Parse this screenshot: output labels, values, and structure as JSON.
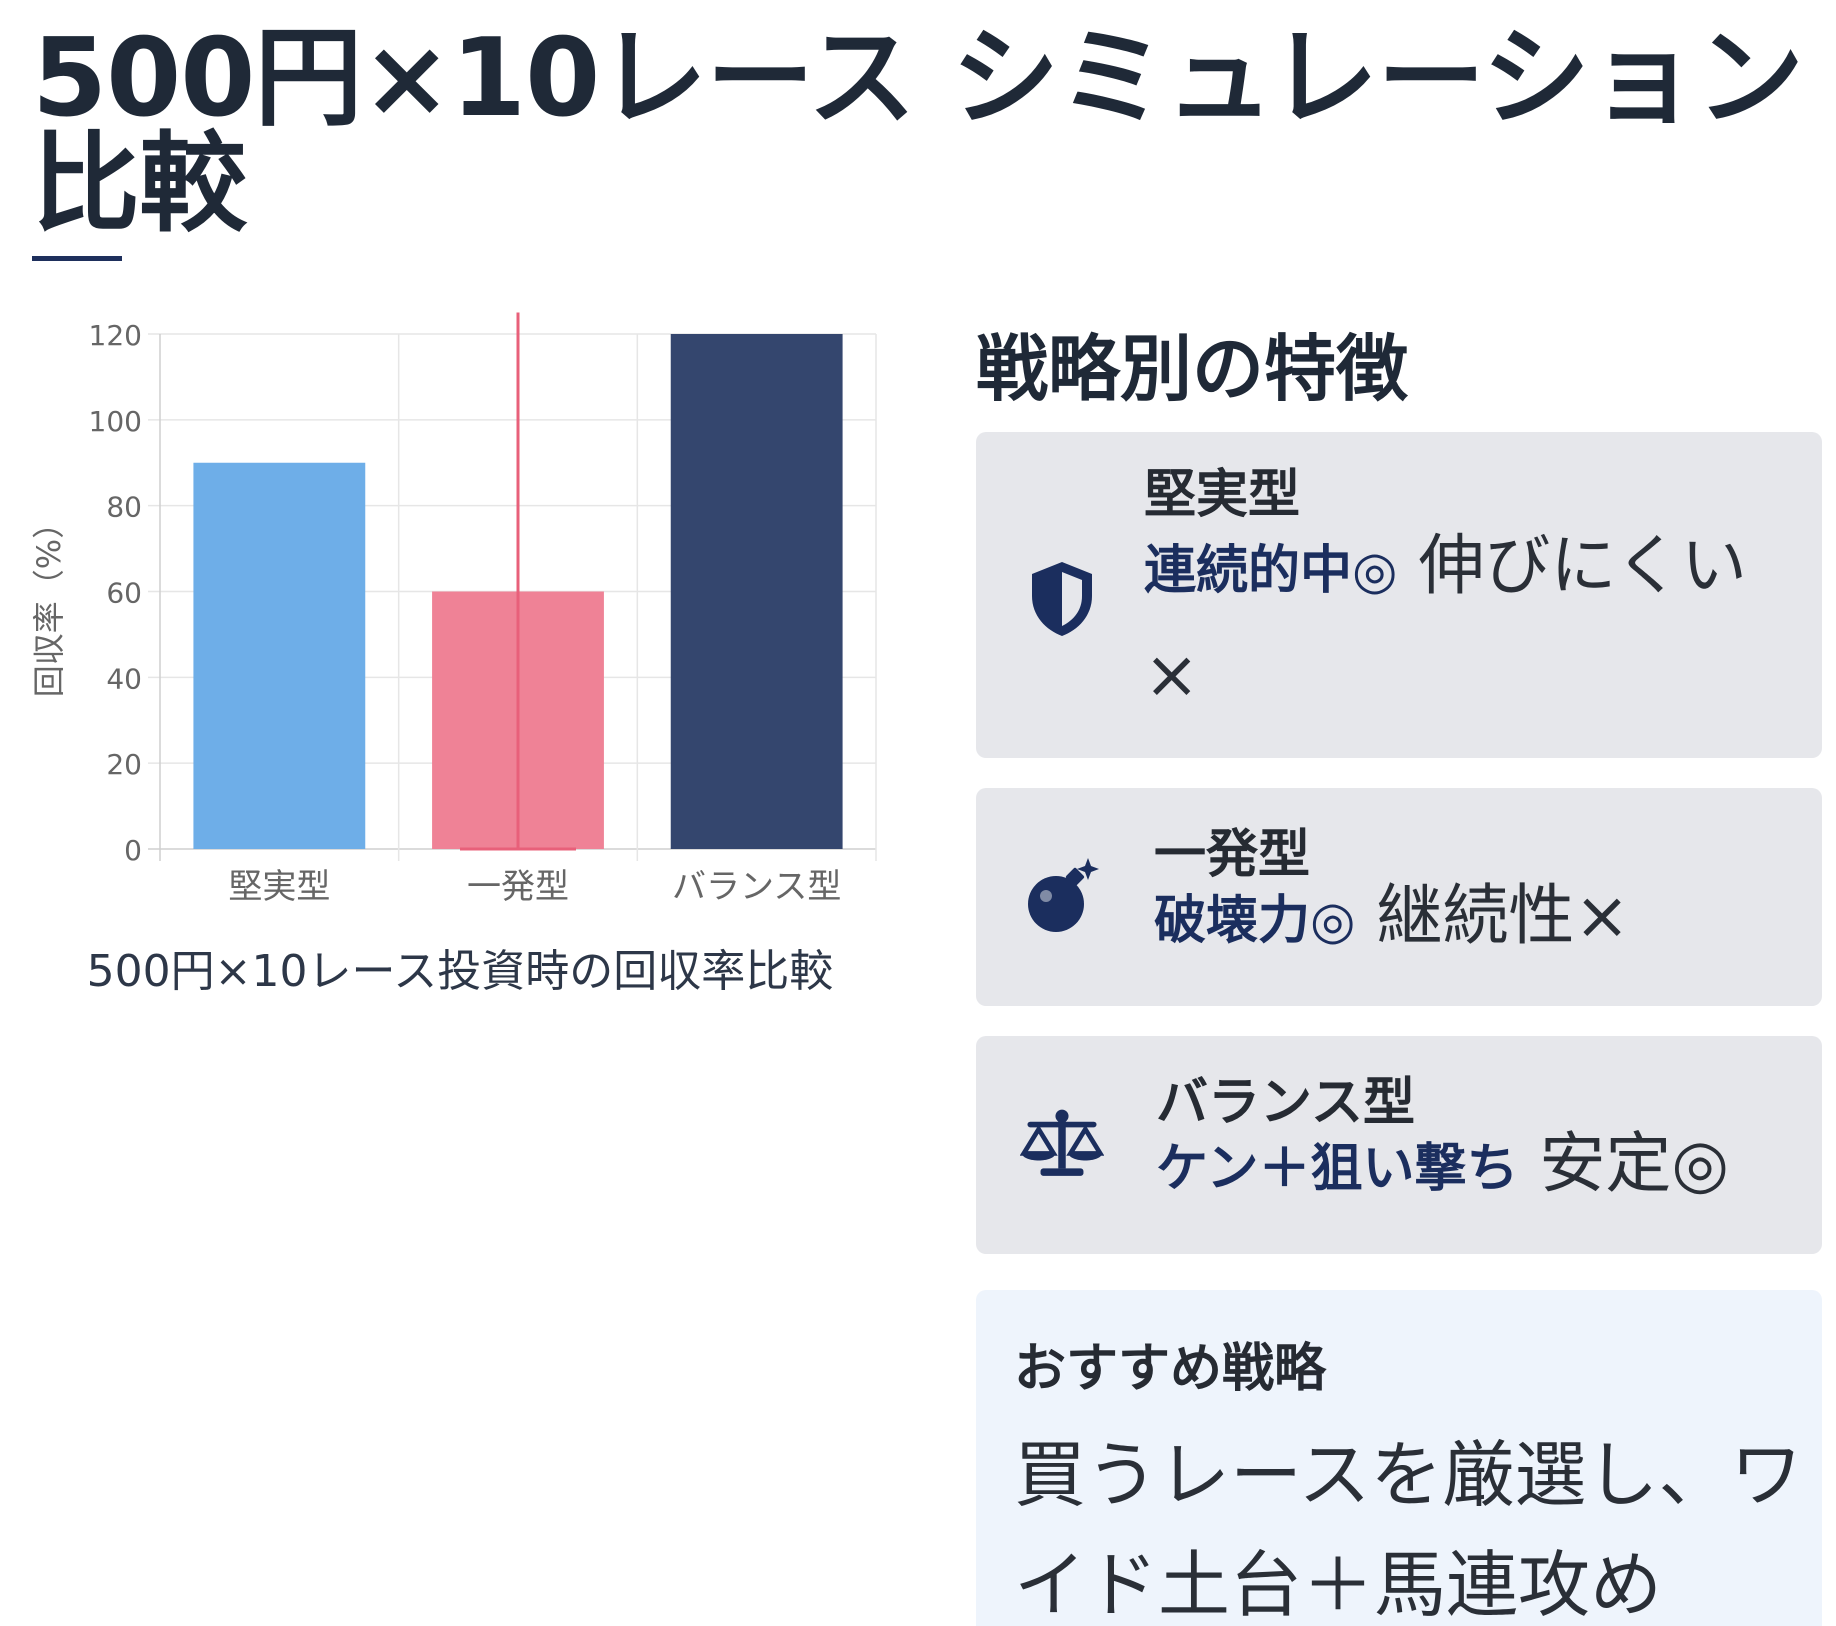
{
  "page": {
    "title": "500円×10レース シミュレーション比較"
  },
  "chart_data": {
    "type": "bar",
    "title": "500円×10レース投資時の回収率比較",
    "ylabel": "回収率（%）",
    "xlabel": "",
    "categories": [
      "堅実型",
      "一発型",
      "バランス型"
    ],
    "values": [
      90,
      60,
      120
    ],
    "ylim": [
      0,
      120
    ],
    "yticks": [
      0,
      20,
      40,
      60,
      80,
      100,
      120
    ],
    "error_bar": {
      "category": "一発型",
      "low": 0,
      "high": 125
    },
    "grid": true,
    "legend": "none",
    "colors": [
      "#6eaee8",
      "#ef8296",
      "#34466e"
    ],
    "error_color": "#e8607a"
  },
  "strategy": {
    "heading": "戦略別の特徴",
    "cards": [
      {
        "icon": "shield-icon",
        "title": "堅実型",
        "strong": "連続的中◎",
        "rest": " 伸びにくい×"
      },
      {
        "icon": "bomb-icon",
        "title": "一発型",
        "strong": "破壊力◎",
        "rest": " 継続性×"
      },
      {
        "icon": "scale-icon",
        "title": "バランス型",
        "strong": "ケン＋狙い撃ち",
        "rest": " 安定◎"
      }
    ],
    "icon_color": "#1b2e5e"
  },
  "recommend": {
    "title": "おすすめ戦略",
    "text": "買うレースを厳選し、ワイド土台＋馬連攻め"
  }
}
